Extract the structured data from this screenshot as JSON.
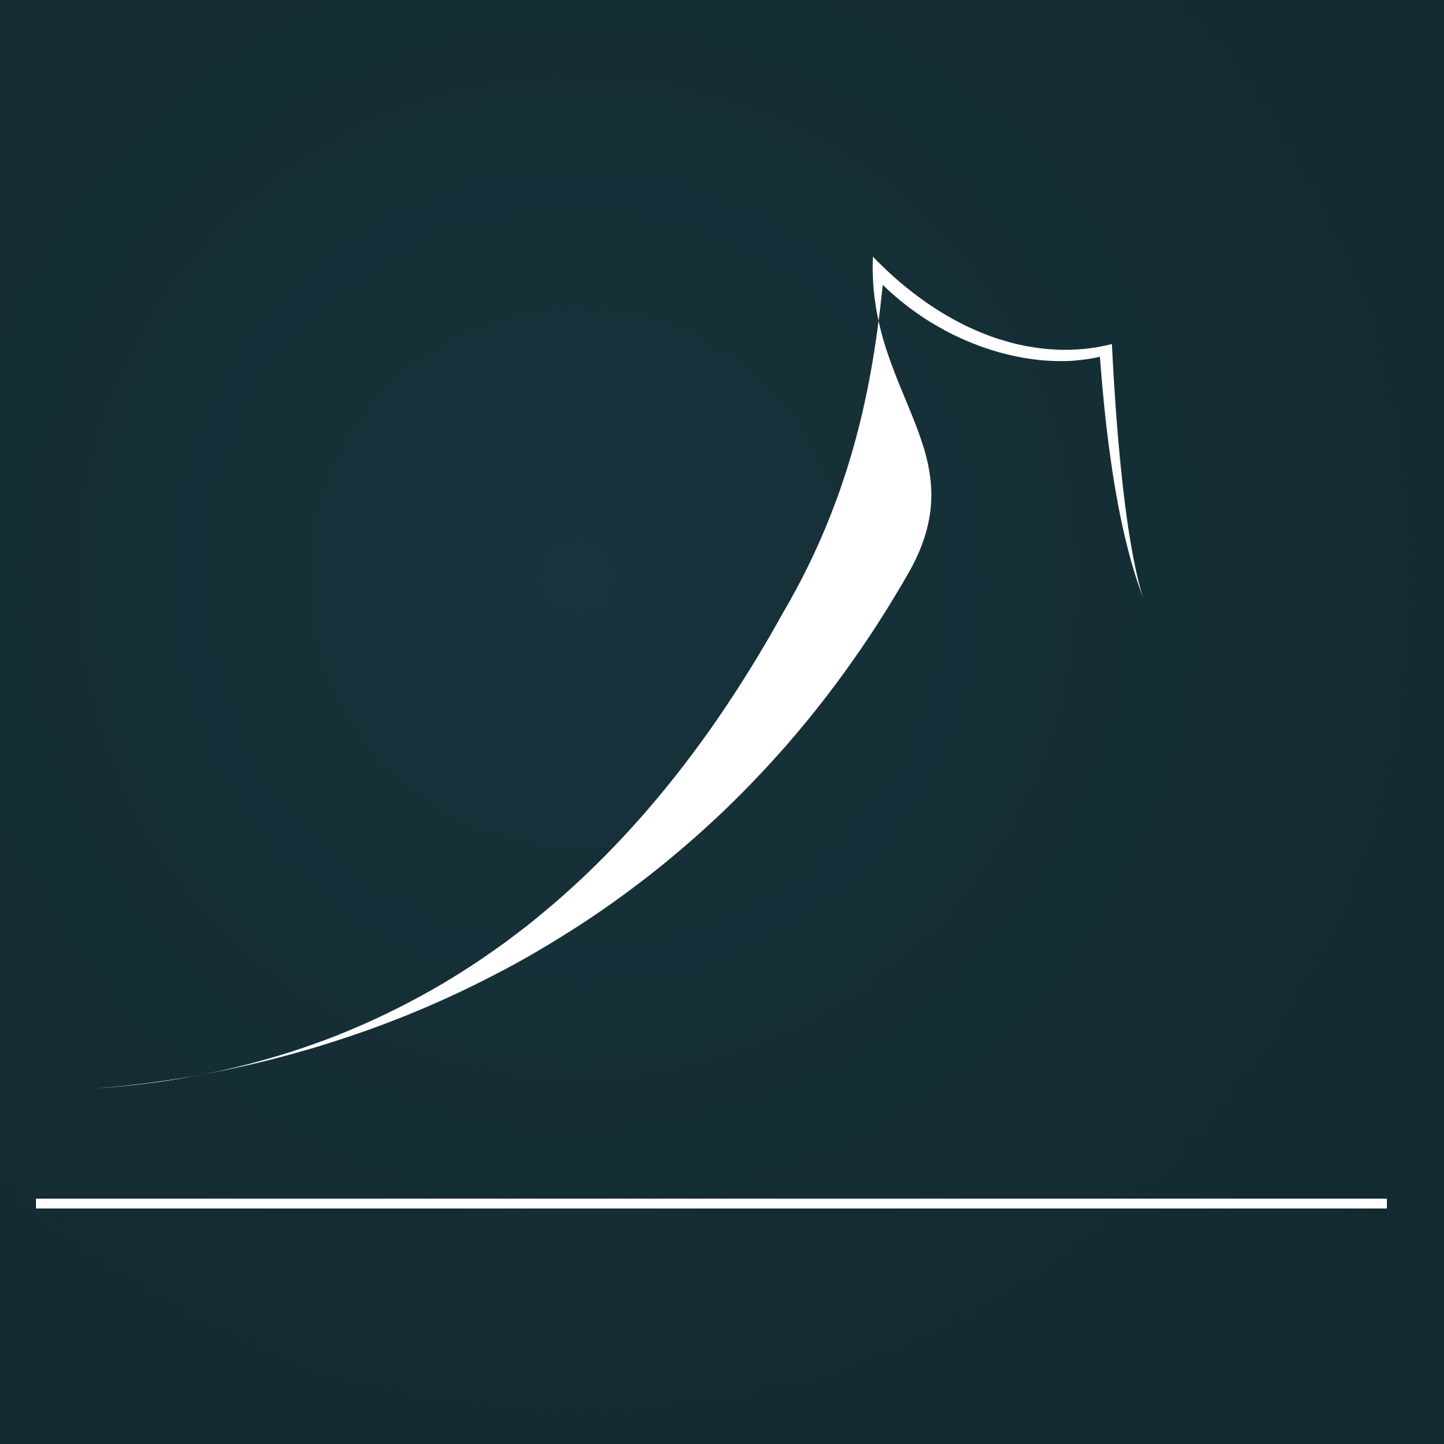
{
  "colors": {
    "background": "#142d35",
    "line": "#ffffff"
  },
  "artwork": {
    "icon": "mountain-line-art-icon"
  }
}
